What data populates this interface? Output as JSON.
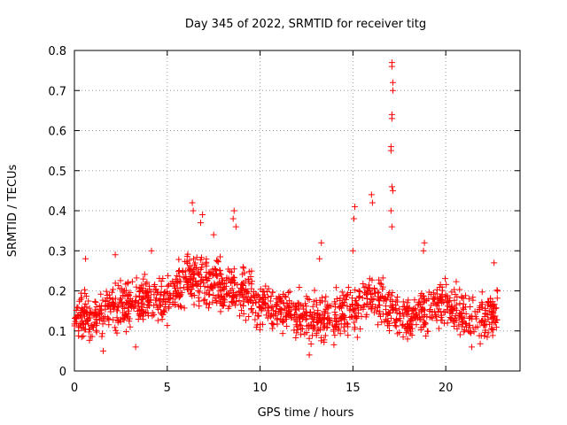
{
  "chart_data": {
    "type": "scatter",
    "title": "Day 345 of 2022, SRMTID for receiver titg",
    "xlabel": "GPS time / hours",
    "ylabel": "SRMTID / TECUs",
    "xlim": [
      0,
      24
    ],
    "ylim": [
      0,
      0.8
    ],
    "x_ticks": [
      "0",
      "5",
      "10",
      "15",
      "20"
    ],
    "y_ticks": [
      "0",
      "0.1",
      "0.2",
      "0.3",
      "0.4",
      "0.5",
      "0.6",
      "0.7",
      "0.8"
    ],
    "grid": true,
    "marker": "+",
    "series_color": "#ff0000",
    "baseline_trend": [
      [
        0.0,
        0.14
      ],
      [
        1.0,
        0.13
      ],
      [
        2.0,
        0.15
      ],
      [
        3.0,
        0.17
      ],
      [
        4.0,
        0.18
      ],
      [
        5.0,
        0.18
      ],
      [
        6.0,
        0.23
      ],
      [
        7.0,
        0.22
      ],
      [
        8.0,
        0.21
      ],
      [
        9.0,
        0.2
      ],
      [
        10.0,
        0.17
      ],
      [
        11.0,
        0.15
      ],
      [
        12.0,
        0.14
      ],
      [
        13.0,
        0.13
      ],
      [
        14.0,
        0.14
      ],
      [
        15.0,
        0.15
      ],
      [
        16.0,
        0.19
      ],
      [
        17.0,
        0.15
      ],
      [
        18.0,
        0.14
      ],
      [
        19.0,
        0.15
      ],
      [
        20.0,
        0.17
      ],
      [
        21.0,
        0.14
      ],
      [
        22.0,
        0.13
      ],
      [
        22.8,
        0.15
      ]
    ],
    "highlighted_points": [
      [
        17.1,
        0.77
      ],
      [
        17.1,
        0.76
      ],
      [
        17.15,
        0.72
      ],
      [
        17.15,
        0.7
      ],
      [
        17.1,
        0.64
      ],
      [
        17.1,
        0.63
      ],
      [
        17.05,
        0.56
      ],
      [
        17.05,
        0.55
      ],
      [
        17.1,
        0.46
      ],
      [
        17.15,
        0.45
      ],
      [
        17.05,
        0.4
      ],
      [
        17.1,
        0.36
      ],
      [
        16.0,
        0.44
      ],
      [
        16.05,
        0.42
      ],
      [
        15.1,
        0.41
      ],
      [
        15.05,
        0.38
      ],
      [
        15.0,
        0.3
      ],
      [
        13.3,
        0.32
      ],
      [
        13.2,
        0.28
      ],
      [
        6.35,
        0.42
      ],
      [
        6.4,
        0.4
      ],
      [
        6.9,
        0.39
      ],
      [
        6.8,
        0.37
      ],
      [
        8.6,
        0.4
      ],
      [
        8.55,
        0.38
      ],
      [
        8.7,
        0.36
      ],
      [
        7.5,
        0.34
      ],
      [
        18.85,
        0.32
      ],
      [
        18.8,
        0.3
      ],
      [
        22.6,
        0.27
      ],
      [
        0.6,
        0.28
      ],
      [
        2.2,
        0.29
      ],
      [
        4.15,
        0.3
      ],
      [
        12.65,
        0.04
      ],
      [
        1.55,
        0.05
      ],
      [
        21.4,
        0.06
      ],
      [
        3.3,
        0.06
      ]
    ]
  }
}
